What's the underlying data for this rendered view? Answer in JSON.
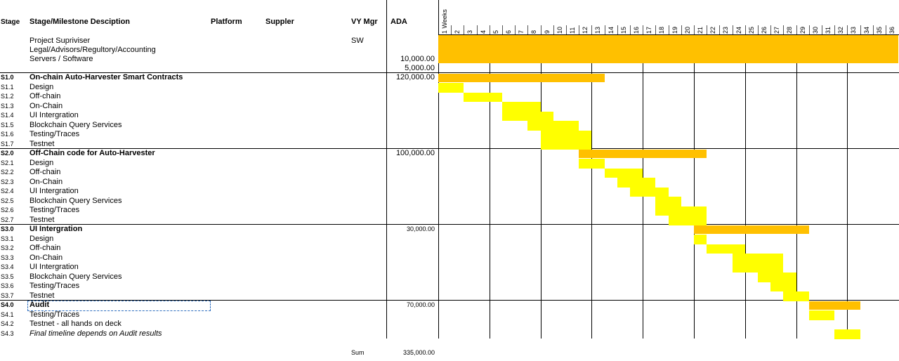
{
  "headers": {
    "stage": "Stage",
    "desc": "Stage/Milestone  Desciption",
    "platform": "Platform",
    "supplier": "Suppler",
    "vymgr": "VY Mgr",
    "ada": "ADA"
  },
  "weeks_label": "Weeks",
  "weeks": [
    "1",
    "2",
    "3",
    "4",
    "5",
    "6",
    "7",
    "8",
    "9",
    "10",
    "11",
    "12",
    "13",
    "14",
    "15",
    "16",
    "17",
    "18",
    "19",
    "20",
    "21",
    "22",
    "23",
    "24",
    "25",
    "26",
    "27",
    "28",
    "29",
    "30",
    "31",
    "32",
    "33",
    "34",
    "35",
    "36"
  ],
  "overhead": [
    {
      "desc": "Project Supriviser",
      "vymgr": "SW",
      "ada": ""
    },
    {
      "desc": "Legal/Advisors/Regultory/Accounting",
      "vymgr": "",
      "ada": "10,000.00"
    },
    {
      "desc": "Servers / Software",
      "vymgr": "",
      "ada": "5,000.00"
    }
  ],
  "overhead_bar": {
    "start_week": 1,
    "end_week": 36
  },
  "rows": [
    {
      "stage": "S1.0",
      "desc": "On-chain Auto-Harvester Smart Contracts",
      "ada": "120,000.00",
      "type": "header",
      "start": 1,
      "end": 13
    },
    {
      "stage": "S1.1",
      "desc": "Design",
      "ada": "",
      "type": "task",
      "start": 1,
      "end": 2
    },
    {
      "stage": "S1.2",
      "desc": "Off-chain",
      "ada": "",
      "type": "task",
      "start": 3,
      "end": 5
    },
    {
      "stage": "S1.3",
      "desc": "On-Chain",
      "ada": "",
      "type": "task",
      "start": 6,
      "end": 8
    },
    {
      "stage": "S1.4",
      "desc": "UI Intergration",
      "ada": "",
      "type": "task",
      "start": 6,
      "end": 9
    },
    {
      "stage": "S1.5",
      "desc": "Blockchain Query Services",
      "ada": "",
      "type": "task",
      "start": 8,
      "end": 11
    },
    {
      "stage": "S1.6",
      "desc": "Testing/Traces",
      "ada": "",
      "type": "task",
      "start": 9,
      "end": 12
    },
    {
      "stage": "S1.7",
      "desc": "Testnet",
      "ada": "",
      "type": "task",
      "start": 9,
      "end": 12
    },
    {
      "stage": "S2.0",
      "desc": "Off-Chain code for Auto-Harvester",
      "ada": "100,000.00",
      "type": "header",
      "start": 12,
      "end": 21
    },
    {
      "stage": "S2.1",
      "desc": "Design",
      "ada": "",
      "type": "task",
      "start": 12,
      "end": 13
    },
    {
      "stage": "S2.2",
      "desc": "Off-chain",
      "ada": "",
      "type": "task",
      "start": 14,
      "end": 16
    },
    {
      "stage": "S2.3",
      "desc": "On-Chain",
      "ada": "",
      "type": "task",
      "start": 15,
      "end": 17
    },
    {
      "stage": "S2.4",
      "desc": "UI Intergration",
      "ada": "",
      "type": "task",
      "start": 16,
      "end": 18
    },
    {
      "stage": "S2.5",
      "desc": "Blockchain Query Services",
      "ada": "",
      "type": "task",
      "start": 18,
      "end": 19
    },
    {
      "stage": "S2.6",
      "desc": "Testing/Traces",
      "ada": "",
      "type": "task",
      "start": 18,
      "end": 21
    },
    {
      "stage": "S2.7",
      "desc": "Testnet",
      "ada": "",
      "type": "task",
      "start": 19,
      "end": 21
    },
    {
      "stage": "S3.0",
      "desc": "UI Intergration",
      "ada": "30,000.00",
      "type": "header",
      "start": 21,
      "end": 29
    },
    {
      "stage": "S3.1",
      "desc": "Design",
      "ada": "",
      "type": "task",
      "start": 21,
      "end": 21
    },
    {
      "stage": "S3.2",
      "desc": "Off-chain",
      "ada": "",
      "type": "task",
      "start": 22,
      "end": 24
    },
    {
      "stage": "S3.3",
      "desc": "On-Chain",
      "ada": "",
      "type": "task",
      "start": 24,
      "end": 27
    },
    {
      "stage": "S3.4",
      "desc": "UI Intergration",
      "ada": "",
      "type": "task",
      "start": 24,
      "end": 27
    },
    {
      "stage": "S3.5",
      "desc": "Blockchain Query Services",
      "ada": "",
      "type": "task",
      "start": 26,
      "end": 28
    },
    {
      "stage": "S3.6",
      "desc": "Testing/Traces",
      "ada": "",
      "type": "task",
      "start": 27,
      "end": 28
    },
    {
      "stage": "S3.7",
      "desc": "Testnet",
      "ada": "",
      "type": "task",
      "start": 28,
      "end": 29
    },
    {
      "stage": "S4.0",
      "desc": "Audit",
      "ada": "70,000.00",
      "type": "header",
      "start": 30,
      "end": 33
    },
    {
      "stage": "S4.1",
      "desc": "Testing/Traces",
      "ada": "",
      "type": "task",
      "start": 30,
      "end": 31
    },
    {
      "stage": "S4.2",
      "desc": "Testnet - all hands on deck",
      "ada": "",
      "type": "none",
      "start": 0,
      "end": 0
    },
    {
      "stage": "S4.3",
      "desc": "Final timeline depends on Audit results",
      "ada": "",
      "type": "task-italic",
      "start": 32,
      "end": 33
    }
  ],
  "sum": {
    "label": "Sum",
    "value": "335,000.00"
  },
  "colors": {
    "header_bar": "#ffc000",
    "task_bar": "#ffff00",
    "grid": "#000000",
    "selection": "#2f6fbf"
  }
}
